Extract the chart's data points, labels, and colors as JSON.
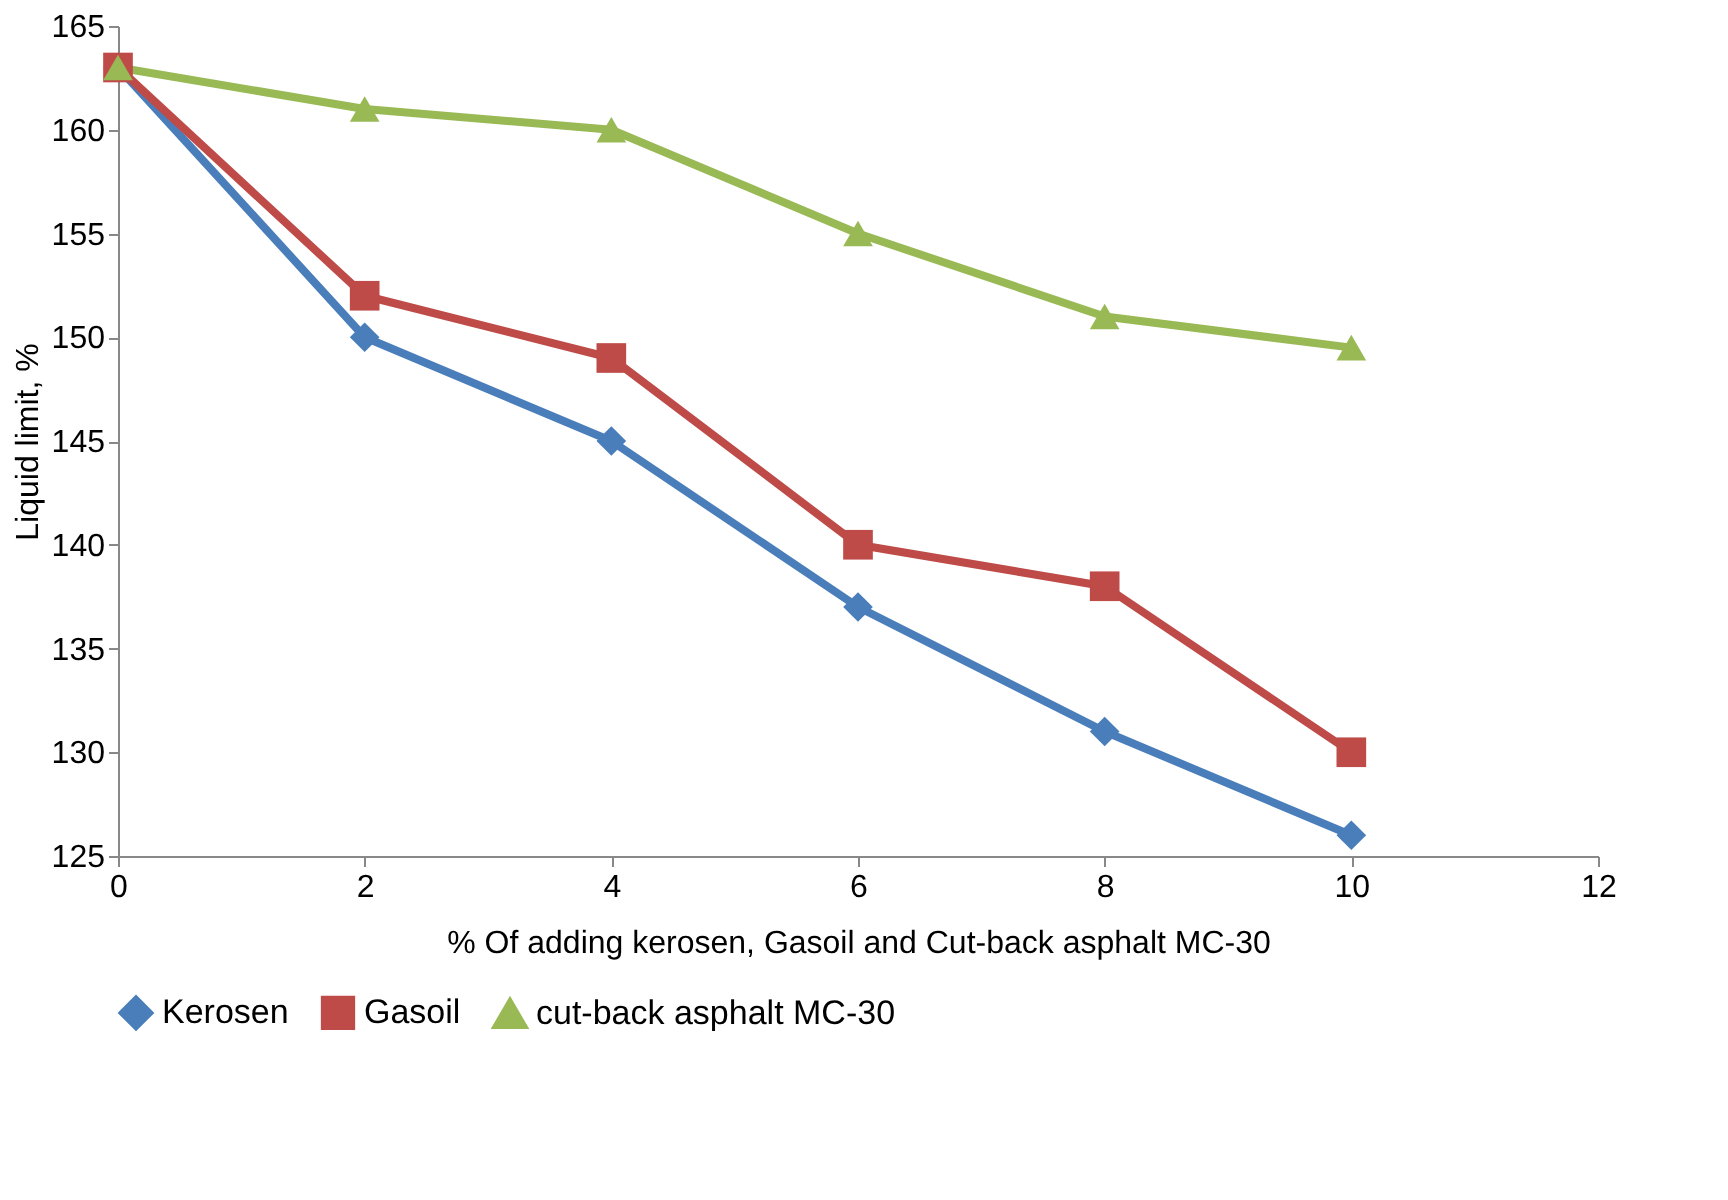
{
  "chart_data": {
    "type": "line",
    "xlabel": "% Of adding kerosen, Gasoil and Cut-back asphalt MC-30",
    "ylabel": "Liquid limit, %",
    "x": [
      0,
      2,
      4,
      6,
      8,
      10
    ],
    "series": [
      {
        "name": "Kerosen",
        "color": "#4a7ebb",
        "marker": "diamond",
        "values": [
          163,
          150,
          145,
          137,
          131,
          126
        ]
      },
      {
        "name": "Gasoil",
        "color": "#be4b48",
        "marker": "square",
        "values": [
          163,
          152,
          149,
          140,
          138,
          130
        ]
      },
      {
        "name": "cut-back asphalt MC-30",
        "color": "#98b954",
        "marker": "triangle",
        "values": [
          163,
          161,
          160,
          155,
          151,
          149.5
        ]
      }
    ],
    "xlim": [
      0,
      12
    ],
    "xticks": [
      0,
      2,
      4,
      6,
      8,
      10,
      12
    ],
    "ylim": [
      125,
      165
    ],
    "yticks": [
      125,
      130,
      135,
      140,
      145,
      150,
      155,
      160,
      165
    ],
    "grid": false,
    "legend": "bottom",
    "line_style": "solid"
  }
}
